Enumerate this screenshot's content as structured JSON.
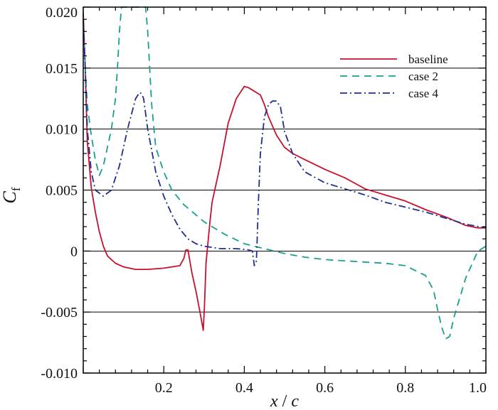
{
  "chart_data": {
    "type": "line",
    "xlabel": {
      "main": "x",
      "sep": " / ",
      "den": "c"
    },
    "ylabel": {
      "main": "C",
      "sub": "f"
    },
    "xlim": [
      0.0,
      1.0
    ],
    "ylim": [
      -0.01,
      0.02
    ],
    "xticks": [
      0.2,
      0.4,
      0.6,
      0.8,
      1.0
    ],
    "xtick_labels": [
      "0.2",
      "0.4",
      "0.6",
      "0.8",
      "1.0"
    ],
    "yticks": [
      -0.01,
      -0.005,
      0,
      0.005,
      0.01,
      0.015,
      0.02
    ],
    "ytick_labels": [
      "-0.010",
      "-0.005",
      "0",
      "0.005",
      "0.010",
      "0.015",
      "0.020"
    ],
    "grid": "horizontal",
    "legend_position": "top-right",
    "series": [
      {
        "name": "baseline",
        "color": "#c8102e",
        "dash": "solid",
        "x": [
          0.0,
          0.005,
          0.01,
          0.02,
          0.03,
          0.04,
          0.05,
          0.06,
          0.08,
          0.1,
          0.13,
          0.16,
          0.2,
          0.24,
          0.25,
          0.255,
          0.26,
          0.27,
          0.28,
          0.29,
          0.298,
          0.301,
          0.305,
          0.31,
          0.315,
          0.32,
          0.34,
          0.36,
          0.38,
          0.4,
          0.41,
          0.42,
          0.44,
          0.45,
          0.46,
          0.48,
          0.5,
          0.52,
          0.55,
          0.6,
          0.65,
          0.7,
          0.75,
          0.8,
          0.85,
          0.9,
          0.95,
          0.98,
          1.0
        ],
        "y": [
          0.0195,
          0.015,
          0.009,
          0.0052,
          0.0032,
          0.0016,
          0.0004,
          -0.0004,
          -0.001,
          -0.0013,
          -0.0015,
          -0.0015,
          -0.0014,
          -0.0012,
          -0.0006,
          0.0001,
          0.0001,
          -0.0018,
          -0.0033,
          -0.005,
          -0.0065,
          -0.0045,
          -0.001,
          0.0008,
          0.0025,
          0.004,
          0.007,
          0.0105,
          0.0125,
          0.0135,
          0.0134,
          0.0132,
          0.0128,
          0.012,
          0.011,
          0.0095,
          0.0085,
          0.008,
          0.0075,
          0.0067,
          0.006,
          0.0051,
          0.0046,
          0.0041,
          0.0034,
          0.0028,
          0.0021,
          0.0019,
          0.0019
        ]
      },
      {
        "name": "case 2",
        "color": "#1a9e8f",
        "dash": "dashed",
        "x": [
          0.0,
          0.005,
          0.01,
          0.02,
          0.03,
          0.04,
          0.05,
          0.06,
          0.07,
          0.08,
          0.085,
          0.09,
          0.095,
          0.155,
          0.16,
          0.165,
          0.17,
          0.18,
          0.2,
          0.22,
          0.25,
          0.3,
          0.35,
          0.4,
          0.45,
          0.5,
          0.55,
          0.6,
          0.65,
          0.7,
          0.75,
          0.8,
          0.85,
          0.87,
          0.88,
          0.89,
          0.9,
          0.91,
          0.92,
          0.95,
          0.98,
          1.0
        ],
        "y": [
          0.019,
          0.015,
          0.012,
          0.0095,
          0.0075,
          0.0062,
          0.007,
          0.0085,
          0.01,
          0.0125,
          0.015,
          0.018,
          0.02,
          0.02,
          0.018,
          0.015,
          0.012,
          0.0085,
          0.0065,
          0.005,
          0.0038,
          0.0024,
          0.0014,
          0.0006,
          0.0002,
          -0.0002,
          -0.0005,
          -0.0007,
          -0.0008,
          -0.0009,
          -0.001,
          -0.0012,
          -0.002,
          -0.0032,
          -0.0048,
          -0.0062,
          -0.0072,
          -0.007,
          -0.0055,
          -0.0022,
          0.0,
          0.0004
        ]
      },
      {
        "name": "case 4",
        "color": "#1f2f8f",
        "dash": "dashdot",
        "x": [
          0.0,
          0.005,
          0.01,
          0.02,
          0.03,
          0.05,
          0.07,
          0.09,
          0.11,
          0.13,
          0.14,
          0.145,
          0.15,
          0.16,
          0.18,
          0.2,
          0.22,
          0.24,
          0.26,
          0.28,
          0.3,
          0.34,
          0.38,
          0.41,
          0.42,
          0.425,
          0.43,
          0.432,
          0.435,
          0.44,
          0.45,
          0.46,
          0.47,
          0.48,
          0.49,
          0.5,
          0.52,
          0.55,
          0.6,
          0.65,
          0.7,
          0.75,
          0.8,
          0.85,
          0.9,
          0.95,
          1.0
        ],
        "y": [
          0.019,
          0.015,
          0.01,
          0.0065,
          0.005,
          0.0045,
          0.005,
          0.007,
          0.01,
          0.0125,
          0.013,
          0.0129,
          0.0125,
          0.01,
          0.0065,
          0.0045,
          0.003,
          0.0018,
          0.001,
          0.0006,
          0.0004,
          0.0002,
          0.0002,
          0.0001,
          0.0,
          -0.0012,
          -0.0008,
          0.001,
          0.004,
          0.008,
          0.011,
          0.012,
          0.0123,
          0.0123,
          0.0118,
          0.0098,
          0.008,
          0.0065,
          0.0056,
          0.0051,
          0.0046,
          0.004,
          0.0036,
          0.0032,
          0.0027,
          0.0022,
          0.0019
        ]
      }
    ]
  }
}
